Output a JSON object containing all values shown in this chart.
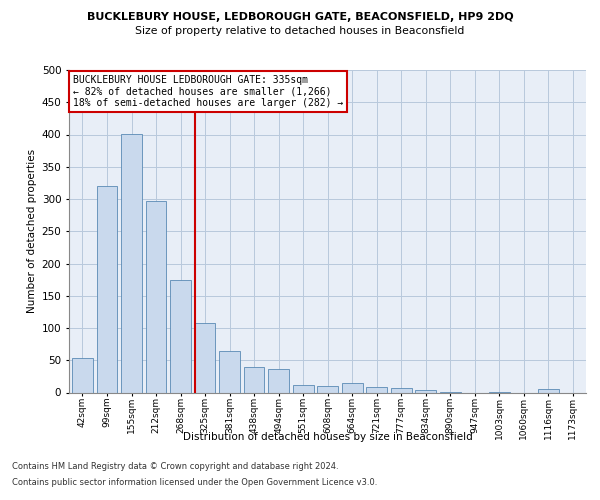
{
  "title": "BUCKLEBURY HOUSE, LEDBOROUGH GATE, BEACONSFIELD, HP9 2DQ",
  "subtitle": "Size of property relative to detached houses in Beaconsfield",
  "xlabel": "Distribution of detached houses by size in Beaconsfield",
  "ylabel": "Number of detached properties",
  "categories": [
    "42sqm",
    "99sqm",
    "155sqm",
    "212sqm",
    "268sqm",
    "325sqm",
    "381sqm",
    "438sqm",
    "494sqm",
    "551sqm",
    "608sqm",
    "664sqm",
    "721sqm",
    "777sqm",
    "834sqm",
    "890sqm",
    "947sqm",
    "1003sqm",
    "1060sqm",
    "1116sqm",
    "1173sqm"
  ],
  "values": [
    53,
    320,
    401,
    297,
    175,
    108,
    65,
    40,
    36,
    11,
    10,
    15,
    9,
    7,
    4,
    1,
    0,
    1,
    0,
    6,
    0
  ],
  "bar_color": "#c9d9ed",
  "bar_edge_color": "#5a8ab5",
  "vline_color": "#cc0000",
  "annotation_title": "BUCKLEBURY HOUSE LEDBOROUGH GATE: 335sqm",
  "annotation_line2": "← 82% of detached houses are smaller (1,266)",
  "annotation_line3": "18% of semi-detached houses are larger (282) →",
  "annotation_box_edge": "#cc0000",
  "footnote1": "Contains HM Land Registry data © Crown copyright and database right 2024.",
  "footnote2": "Contains public sector information licensed under the Open Government Licence v3.0.",
  "ylim": [
    0,
    500
  ],
  "yticks": [
    0,
    50,
    100,
    150,
    200,
    250,
    300,
    350,
    400,
    450,
    500
  ],
  "grid_color": "#b8c8dc",
  "background_color": "#e8eef7"
}
